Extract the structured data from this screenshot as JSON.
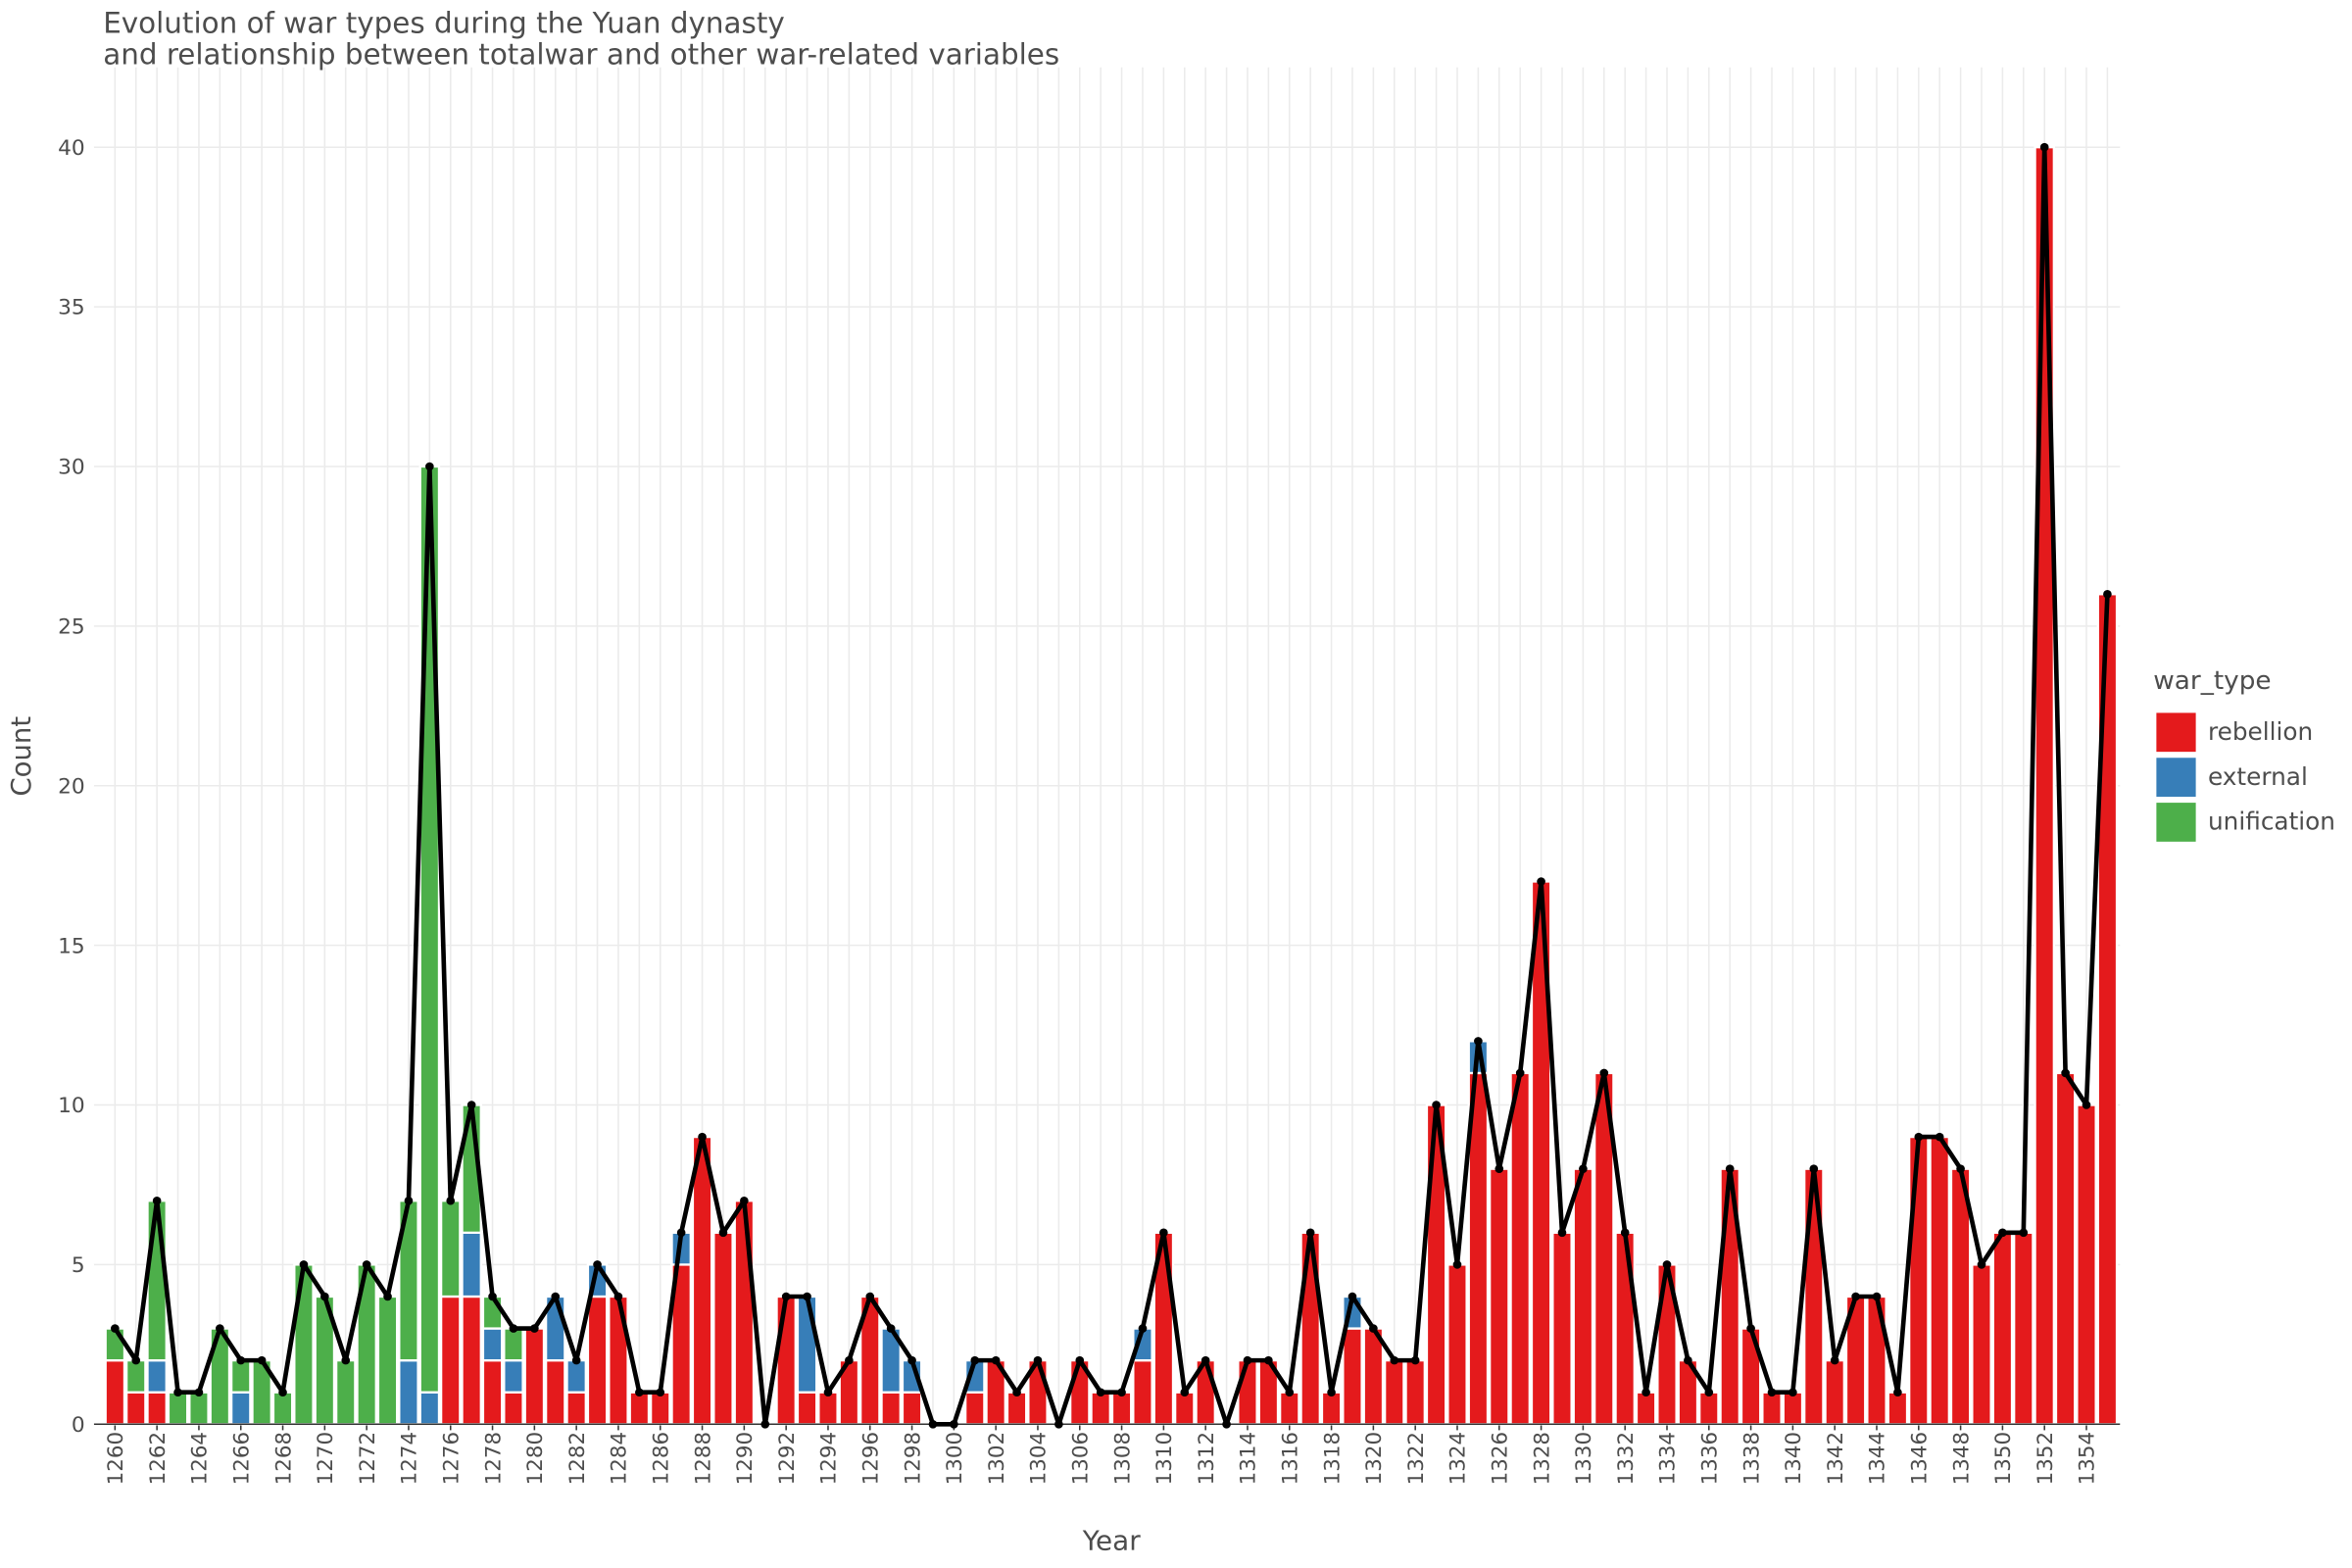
{
  "chart_data": {
    "type": "bar",
    "title": "Evolution of war types during the Yuan dynasty",
    "subtitle": "and relationship between totalwar and other war-related variables",
    "x_label": "Year",
    "y_label": "Count",
    "legend_title": "war_type",
    "legend_position": "right",
    "grid": true,
    "stacked": true,
    "x": [
      1260,
      1261,
      1262,
      1263,
      1264,
      1265,
      1266,
      1267,
      1268,
      1269,
      1270,
      1271,
      1272,
      1273,
      1274,
      1275,
      1276,
      1277,
      1278,
      1279,
      1280,
      1281,
      1282,
      1283,
      1284,
      1285,
      1286,
      1287,
      1288,
      1289,
      1290,
      1291,
      1292,
      1293,
      1294,
      1295,
      1296,
      1297,
      1298,
      1299,
      1300,
      1301,
      1302,
      1303,
      1304,
      1305,
      1306,
      1307,
      1308,
      1309,
      1310,
      1311,
      1312,
      1313,
      1314,
      1315,
      1316,
      1317,
      1318,
      1319,
      1320,
      1321,
      1322,
      1323,
      1324,
      1325,
      1326,
      1327,
      1328,
      1329,
      1330,
      1331,
      1332,
      1333,
      1334,
      1335,
      1336,
      1337,
      1338,
      1339,
      1340,
      1341,
      1342,
      1343,
      1344,
      1345,
      1346,
      1347,
      1348,
      1349,
      1350,
      1351,
      1352,
      1353,
      1354,
      1355
    ],
    "series": [
      {
        "name": "rebellion",
        "color": "#e41a1c",
        "values": [
          2,
          1,
          1,
          0,
          0,
          0,
          0,
          0,
          0,
          0,
          0,
          0,
          0,
          0,
          0,
          0,
          4,
          4,
          2,
          1,
          3,
          2,
          1,
          4,
          4,
          1,
          1,
          5,
          9,
          6,
          7,
          0,
          4,
          1,
          1,
          2,
          4,
          1,
          1,
          0,
          0,
          1,
          2,
          1,
          2,
          0,
          2,
          1,
          1,
          2,
          6,
          1,
          2,
          0,
          2,
          2,
          1,
          6,
          1,
          3,
          3,
          2,
          2,
          10,
          5,
          11,
          8,
          11,
          17,
          6,
          8,
          11,
          6,
          1,
          5,
          2,
          1,
          8,
          3,
          1,
          1,
          8,
          2,
          4,
          4,
          1,
          9,
          9,
          8,
          5,
          6,
          6,
          40,
          11,
          10,
          26
        ]
      },
      {
        "name": "external",
        "color": "#377eb8",
        "values": [
          0,
          0,
          1,
          0,
          0,
          0,
          1,
          0,
          0,
          0,
          0,
          0,
          0,
          0,
          2,
          1,
          0,
          2,
          1,
          1,
          0,
          2,
          1,
          1,
          0,
          0,
          0,
          1,
          0,
          0,
          0,
          0,
          0,
          3,
          0,
          0,
          0,
          2,
          1,
          0,
          0,
          1,
          0,
          0,
          0,
          0,
          0,
          0,
          0,
          1,
          0,
          0,
          0,
          0,
          0,
          0,
          0,
          0,
          0,
          1,
          0,
          0,
          0,
          0,
          0,
          1,
          0,
          0,
          0,
          0,
          0,
          0,
          0,
          0,
          0,
          0,
          0,
          0,
          0,
          0,
          0,
          0,
          0,
          0,
          0,
          0,
          0,
          0,
          0,
          0,
          0,
          0,
          0,
          0,
          0,
          0
        ]
      },
      {
        "name": "unification",
        "color": "#4daf4a",
        "values": [
          1,
          1,
          5,
          1,
          1,
          3,
          1,
          2,
          1,
          5,
          4,
          2,
          5,
          4,
          5,
          29,
          3,
          4,
          1,
          1,
          0,
          0,
          0,
          0,
          0,
          0,
          0,
          0,
          0,
          0,
          0,
          0,
          0,
          0,
          0,
          0,
          0,
          0,
          0,
          0,
          0,
          0,
          0,
          0,
          0,
          0,
          0,
          0,
          0,
          0,
          0,
          0,
          0,
          0,
          0,
          0,
          0,
          0,
          0,
          0,
          0,
          0,
          0,
          0,
          0,
          0,
          0,
          0,
          0,
          0,
          0,
          0,
          0,
          0,
          0,
          0,
          0,
          0,
          0,
          0,
          0,
          0,
          0,
          0,
          0,
          0,
          0,
          0,
          0,
          0,
          0,
          0,
          0,
          0,
          0,
          0
        ]
      }
    ],
    "lines": [
      {
        "color": "#000000",
        "values": [
          3,
          2,
          7,
          1,
          1,
          3,
          2,
          2,
          1,
          5,
          4,
          2,
          5,
          4,
          7,
          30,
          7,
          10,
          4,
          3,
          3,
          4,
          2,
          5,
          4,
          1,
          1,
          6,
          9,
          6,
          7,
          0,
          4,
          4,
          1,
          2,
          4,
          3,
          2,
          0,
          0,
          2,
          2,
          1,
          2,
          0,
          2,
          1,
          1,
          3,
          6,
          1,
          2,
          0,
          2,
          2,
          1,
          6,
          1,
          4,
          3,
          2,
          2,
          10,
          5,
          12,
          8,
          11,
          17,
          6,
          8,
          11,
          6,
          1,
          5,
          2,
          1,
          8,
          3,
          1,
          1,
          8,
          2,
          4,
          4,
          1,
          9,
          9,
          8,
          5,
          6,
          6,
          40,
          11,
          10,
          26
        ]
      }
    ],
    "xlim": [
      1259,
      1355.6
    ],
    "xticks": [
      1260,
      1262,
      1264,
      1266,
      1268,
      1270,
      1272,
      1274,
      1276,
      1278,
      1280,
      1282,
      1284,
      1286,
      1288,
      1290,
      1292,
      1294,
      1296,
      1298,
      1300,
      1302,
      1304,
      1306,
      1308,
      1310,
      1312,
      1314,
      1316,
      1318,
      1320,
      1322,
      1324,
      1326,
      1328,
      1330,
      1332,
      1334,
      1336,
      1338,
      1340,
      1342,
      1344,
      1346,
      1348,
      1350,
      1352,
      1354
    ],
    "ylim": [
      0,
      42.5
    ],
    "yticks": [
      0,
      5,
      10,
      15,
      20,
      25,
      30,
      35,
      40
    ]
  }
}
